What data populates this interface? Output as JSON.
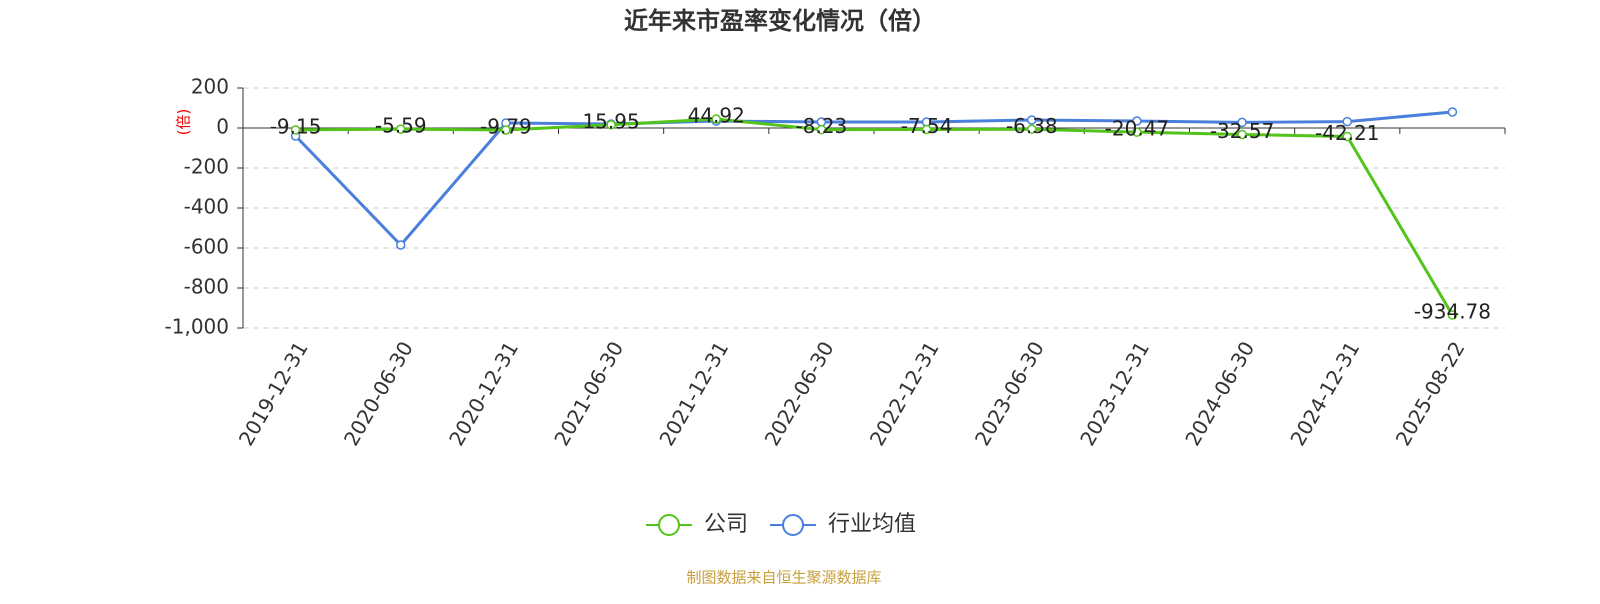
{
  "chart_data": {
    "type": "line",
    "title": "近年来市盈率变化情况（倍）",
    "y_label": "(倍)",
    "source": "制图数据来自恒生聚源数据库",
    "categories": [
      "2019-12-31",
      "2020-06-30",
      "2020-12-31",
      "2021-06-30",
      "2021-12-31",
      "2022-06-30",
      "2022-12-31",
      "2023-06-30",
      "2023-12-31",
      "2024-06-30",
      "2024-12-31",
      "2025-08-22"
    ],
    "series": [
      {
        "name": "公司",
        "color": "#52c41a",
        "show_labels": true,
        "values": [
          -9.15,
          -5.59,
          -9.79,
          15.95,
          44.92,
          -8.23,
          -7.54,
          -6.38,
          -20.47,
          -32.57,
          -42.21,
          -934.78
        ]
      },
      {
        "name": "行业均值",
        "color": "#4a7fdc",
        "show_labels": false,
        "values": [
          -40,
          -585,
          25,
          20,
          35,
          30,
          30,
          40,
          35,
          28,
          32,
          80
        ]
      }
    ],
    "ylim": [
      -1000,
      200
    ],
    "yticks": [
      {
        "value": -1000,
        "label": "-1,000"
      },
      -800,
      -600,
      -400,
      -200,
      0,
      200
    ],
    "grid": true
  }
}
